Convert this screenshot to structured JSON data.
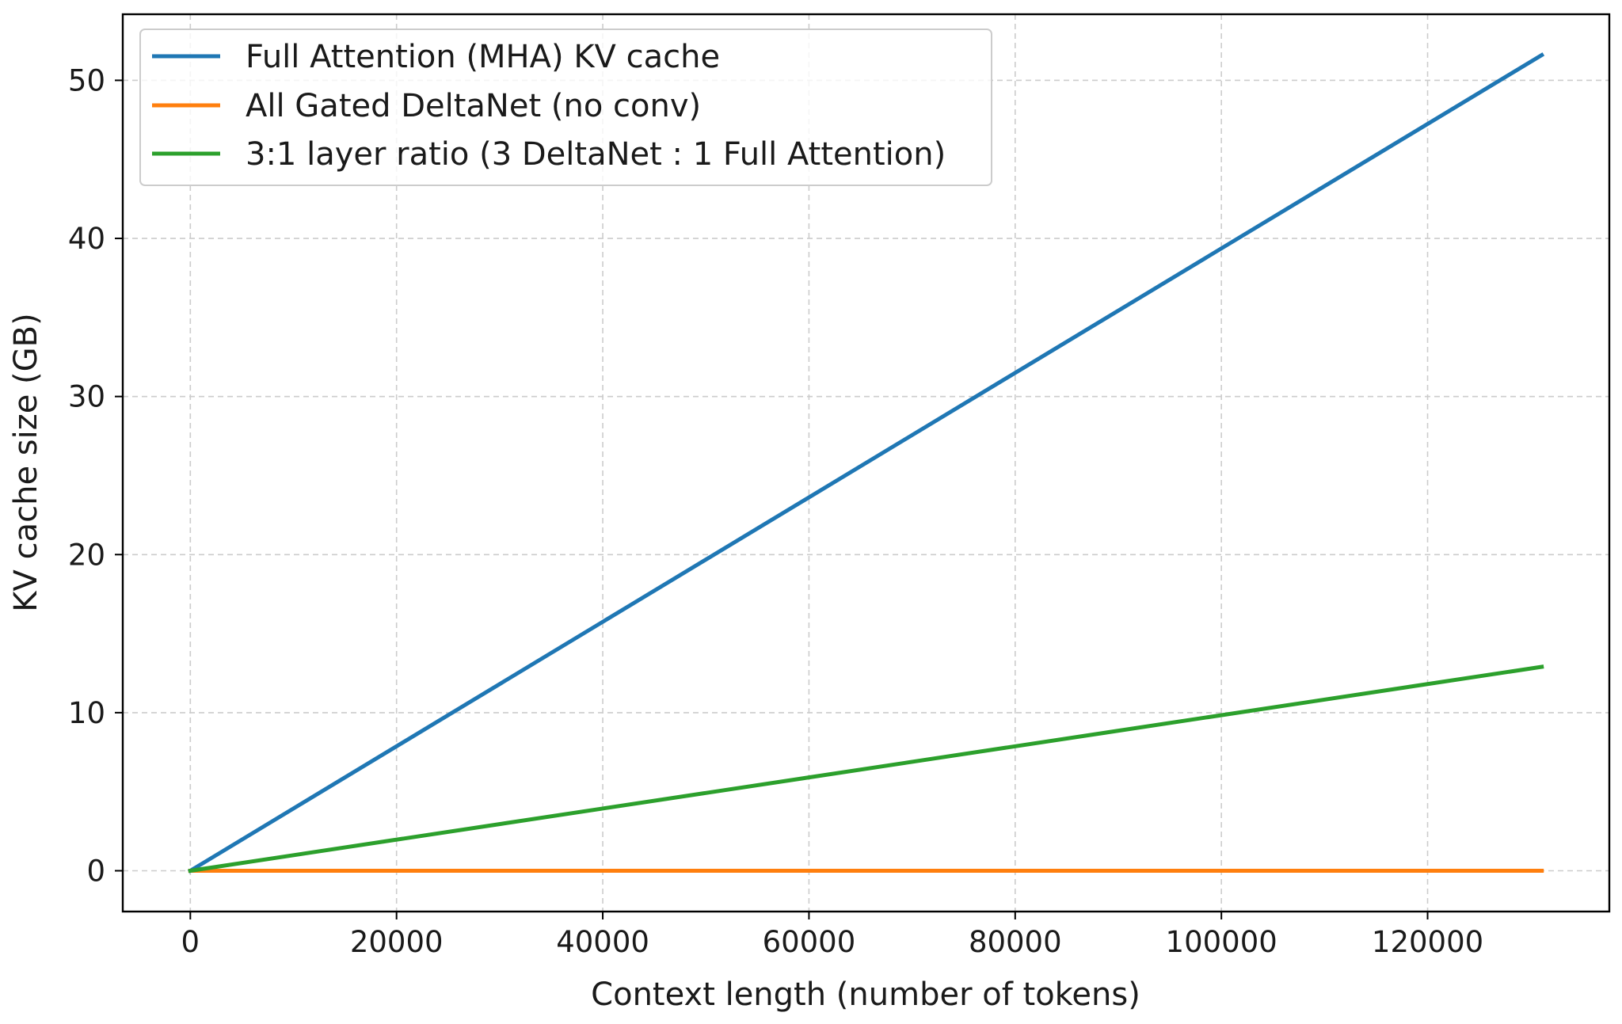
{
  "chart_data": {
    "type": "line",
    "title": "",
    "xlabel": "Context length (number of tokens)",
    "ylabel": "KV cache size (GB)",
    "xlim": [
      -6553.6,
      137625.6
    ],
    "ylim": [
      -2.58,
      54.18
    ],
    "xticks": [
      0,
      20000,
      40000,
      60000,
      80000,
      100000,
      120000
    ],
    "yticks": [
      0,
      10,
      20,
      30,
      40,
      50
    ],
    "grid": true,
    "legend_position": "upper-left",
    "series": [
      {
        "name": "Full Attention (MHA) KV cache",
        "color": "#1f77b4",
        "x": [
          0,
          131072
        ],
        "y": [
          0,
          51.6
        ]
      },
      {
        "name": "All Gated DeltaNet (no conv)",
        "color": "#ff7f0e",
        "x": [
          0,
          131072
        ],
        "y": [
          0,
          0.0
        ]
      },
      {
        "name": "3:1 layer ratio (3 DeltaNet : 1 Full Attention)",
        "color": "#2ca02c",
        "x": [
          0,
          131072
        ],
        "y": [
          0,
          12.9
        ]
      }
    ]
  }
}
